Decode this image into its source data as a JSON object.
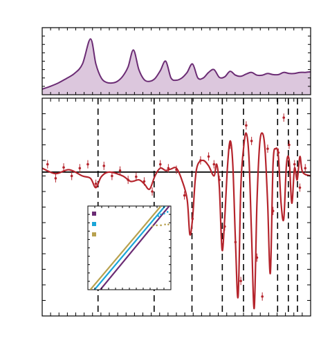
{
  "chart_data": [
    {
      "type": "area",
      "panel": "top",
      "x": [
        0.0,
        0.03,
        0.06,
        0.09,
        0.12,
        0.15,
        0.18,
        0.2,
        0.22,
        0.24,
        0.26,
        0.28,
        0.3,
        0.32,
        0.34,
        0.36,
        0.38,
        0.4,
        0.42,
        0.44,
        0.46,
        0.48,
        0.5,
        0.52,
        0.54,
        0.56,
        0.58,
        0.6,
        0.62,
        0.64,
        0.66,
        0.68,
        0.7,
        0.72,
        0.74,
        0.76,
        0.78,
        0.8,
        0.82,
        0.84,
        0.86,
        0.88,
        0.9,
        0.92,
        0.94,
        0.96,
        0.98,
        1.0
      ],
      "values": [
        0.1,
        0.15,
        0.21,
        0.29,
        0.38,
        0.55,
        1.0,
        0.55,
        0.3,
        0.22,
        0.21,
        0.24,
        0.33,
        0.5,
        0.8,
        0.45,
        0.27,
        0.24,
        0.29,
        0.43,
        0.6,
        0.3,
        0.26,
        0.3,
        0.4,
        0.55,
        0.3,
        0.3,
        0.4,
        0.45,
        0.31,
        0.32,
        0.42,
        0.35,
        0.33,
        0.37,
        0.4,
        0.35,
        0.35,
        0.38,
        0.36,
        0.36,
        0.4,
        0.38,
        0.38,
        0.4,
        0.4,
        0.41
      ],
      "color": "#6b2c74",
      "fill": "#dcc7dd",
      "xlim": [
        0,
        1
      ],
      "ylim": [
        0,
        1.2
      ]
    },
    {
      "type": "line",
      "panel": "main",
      "xlim": [
        0,
        1
      ],
      "ylim": [
        -1.85,
        0.95
      ],
      "zero_line": 0,
      "dashed_lines_x": [
        0.208,
        0.417,
        0.558,
        0.671,
        0.75,
        0.877,
        0.917,
        0.951
      ],
      "model_color": "#b5242c",
      "model_x": [
        0.0,
        0.05,
        0.1,
        0.15,
        0.18,
        0.2,
        0.22,
        0.25,
        0.3,
        0.33,
        0.36,
        0.38,
        0.4,
        0.42,
        0.44,
        0.46,
        0.48,
        0.5,
        0.52,
        0.54,
        0.55,
        0.56,
        0.57,
        0.58,
        0.6,
        0.62,
        0.64,
        0.65,
        0.66,
        0.67,
        0.68,
        0.69,
        0.7,
        0.71,
        0.72,
        0.73,
        0.74,
        0.75,
        0.76,
        0.77,
        0.78,
        0.79,
        0.8,
        0.81,
        0.82,
        0.83,
        0.84,
        0.85,
        0.86,
        0.87,
        0.88,
        0.89,
        0.9,
        0.91,
        0.92,
        0.93,
        0.94,
        0.95,
        0.96,
        0.97,
        1.0
      ],
      "model_values": [
        0.05,
        -0.02,
        0.03,
        -0.05,
        -0.08,
        -0.2,
        -0.06,
        0.0,
        -0.05,
        -0.12,
        -0.1,
        -0.15,
        -0.22,
        -0.05,
        0.05,
        0.02,
        0.04,
        0.05,
        -0.1,
        -0.35,
        -0.8,
        -0.6,
        -0.1,
        0.1,
        0.15,
        0.08,
        -0.05,
        0.1,
        -0.2,
        -1.0,
        -0.6,
        0.05,
        0.4,
        0.1,
        -0.9,
        -1.6,
        -0.2,
        0.3,
        0.5,
        0.2,
        -0.8,
        -1.75,
        -0.4,
        0.35,
        0.5,
        0.3,
        -0.4,
        -1.3,
        0.1,
        0.3,
        0.2,
        -0.4,
        -0.6,
        0.1,
        0.15,
        -0.4,
        0.05,
        -0.1,
        0.2,
        0.0,
        -0.05
      ],
      "data_x": [
        0.02,
        0.05,
        0.08,
        0.11,
        0.14,
        0.17,
        0.2,
        0.23,
        0.26,
        0.29,
        0.32,
        0.35,
        0.38,
        0.41,
        0.44,
        0.47,
        0.5,
        0.53,
        0.56,
        0.59,
        0.62,
        0.64,
        0.66,
        0.68,
        0.7,
        0.72,
        0.74,
        0.76,
        0.78,
        0.8,
        0.82,
        0.84,
        0.86,
        0.88,
        0.9,
        0.92,
        0.94,
        0.96,
        0.98
      ],
      "data_values": [
        0.1,
        -0.08,
        0.06,
        -0.05,
        0.05,
        0.1,
        -0.15,
        0.08,
        -0.05,
        0.02,
        -0.1,
        -0.06,
        -0.12,
        -0.25,
        0.1,
        0.05,
        0.03,
        -0.3,
        -0.6,
        0.15,
        0.2,
        0.1,
        -0.1,
        -0.7,
        0.35,
        -0.9,
        -1.4,
        0.6,
        0.4,
        -1.1,
        -1.6,
        0.3,
        -0.5,
        0.25,
        0.7,
        0.35,
        0.1,
        -0.2,
        0.05
      ]
    },
    {
      "type": "line",
      "panel": "inset",
      "xlim": [
        0,
        1
      ],
      "ylim": [
        0,
        1
      ],
      "legend_colors": [
        "#6b2c74",
        "#1aa5d8",
        "#b8a14e"
      ],
      "series": [
        {
          "color": "#6b2c74",
          "x": [
            0.15,
            0.98
          ],
          "values": [
            0.0,
            1.0
          ]
        },
        {
          "color": "#1aa5d8",
          "x": [
            0.08,
            0.93
          ],
          "values": [
            0.0,
            1.0
          ]
        },
        {
          "color": "#b8a14e",
          "x": [
            0.03,
            0.88
          ],
          "values": [
            0.0,
            1.0
          ]
        }
      ],
      "points": [
        {
          "color": "#1aa5d8",
          "x": [
            0.8,
            0.85,
            0.88,
            0.92,
            0.96
          ],
          "values": [
            0.85,
            0.88,
            0.9,
            0.91,
            0.93
          ]
        },
        {
          "color": "#b8a14e",
          "x": [
            0.78,
            0.83,
            0.88,
            0.93,
            0.97
          ],
          "values": [
            0.76,
            0.77,
            0.77,
            0.78,
            0.78
          ]
        }
      ]
    }
  ]
}
